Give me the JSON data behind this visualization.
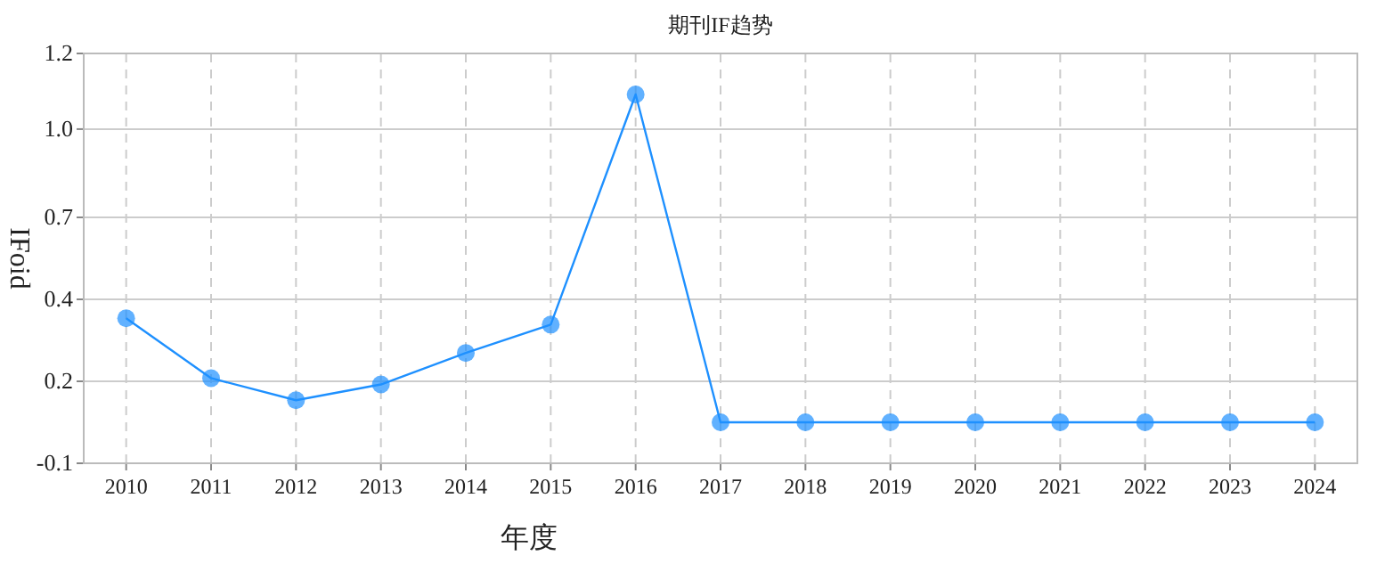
{
  "chart_data": {
    "type": "line",
    "title": "期刊IF趋势",
    "xlabel": "年度",
    "ylabel": "IFoid",
    "categories": [
      "2010",
      "2011",
      "2012",
      "2013",
      "2014",
      "2015",
      "2016",
      "2017",
      "2018",
      "2019",
      "2020",
      "2021",
      "2022",
      "2023",
      "2024"
    ],
    "series": [
      {
        "color": "#1e90ff",
        "values": [
          0.36,
          0.17,
          0.1,
          0.15,
          0.25,
          0.34,
          1.07,
          0.03,
          0.03,
          0.03,
          0.03,
          0.03,
          0.03,
          0.03,
          0.03
        ]
      }
    ],
    "ylim": [
      -0.1,
      1.2
    ],
    "yticks": [
      -0.1,
      {
        "value": 0.16,
        "label": "0.2"
      },
      {
        "value": 0.42,
        "label": "0.4"
      },
      {
        "value": 0.68,
        "label": "0.7"
      },
      {
        "value": 0.96,
        "label": "1.0"
      },
      1.2
    ],
    "grid": true,
    "marker": "circle",
    "line_style": "solid"
  }
}
